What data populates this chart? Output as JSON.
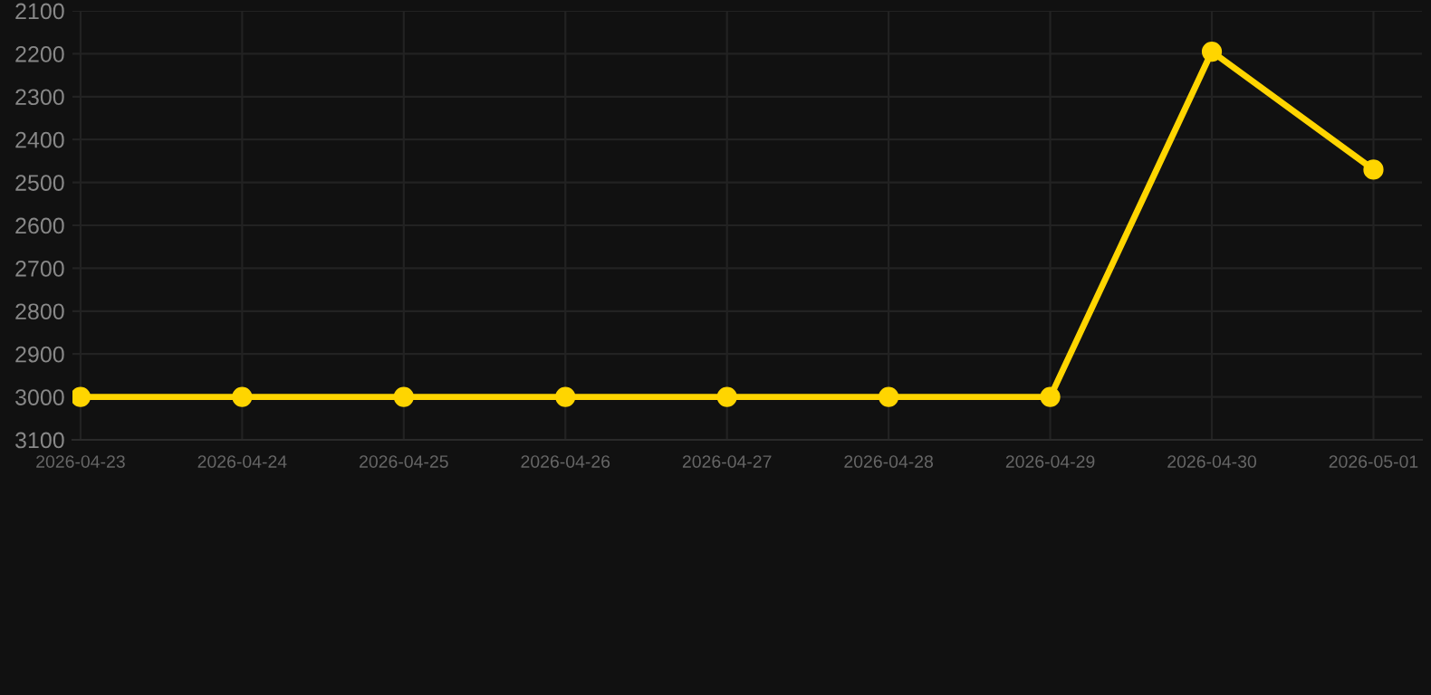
{
  "chart_data": {
    "type": "line",
    "categories": [
      "2026-04-23",
      "2026-04-24",
      "2026-04-25",
      "2026-04-26",
      "2026-04-27",
      "2026-04-28",
      "2026-04-29",
      "2026-04-30",
      "2026-05-01"
    ],
    "series": [
      {
        "color": "#ffd500",
        "values": [
          3000,
          3000,
          3000,
          3000,
          3000,
          3000,
          3000,
          2195,
          2470
        ]
      }
    ],
    "ylim": [
      3100,
      2100
    ],
    "yticks": [
      2100,
      2200,
      2300,
      2400,
      2500,
      2600,
      2700,
      2800,
      2900,
      3000,
      3100
    ],
    "grid": true,
    "marker": "circle",
    "line_style": "solid"
  }
}
